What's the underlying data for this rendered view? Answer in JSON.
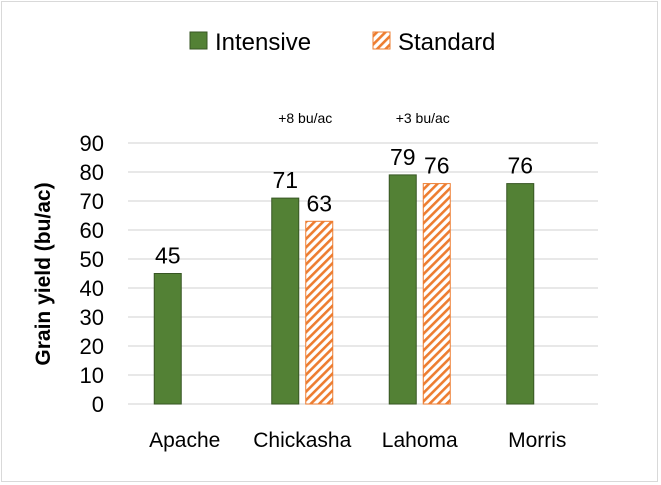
{
  "chart_data": {
    "type": "bar",
    "title": "",
    "xlabel": "",
    "ylabel": "Grain yield (bu/ac)",
    "ylim": [
      0,
      90
    ],
    "yticks": [
      0,
      10,
      20,
      30,
      40,
      50,
      60,
      70,
      80,
      90
    ],
    "grid": true,
    "legend_position": "top",
    "categories": [
      "Apache",
      "Chickasha",
      "Lahoma",
      "Morris"
    ],
    "series": [
      {
        "name": "Intensive",
        "values": [
          45,
          71,
          79,
          76
        ],
        "color": "#538135",
        "pattern": "solid"
      },
      {
        "name": "Standard",
        "values": [
          null,
          63,
          76,
          null
        ],
        "color": "#ed7d31",
        "pattern": "diagonal-hatch"
      }
    ],
    "annotations": [
      {
        "category": "Chickasha",
        "text": "+8 bu/ac"
      },
      {
        "category": "Lahoma",
        "text": "+3 bu/ac"
      }
    ]
  }
}
